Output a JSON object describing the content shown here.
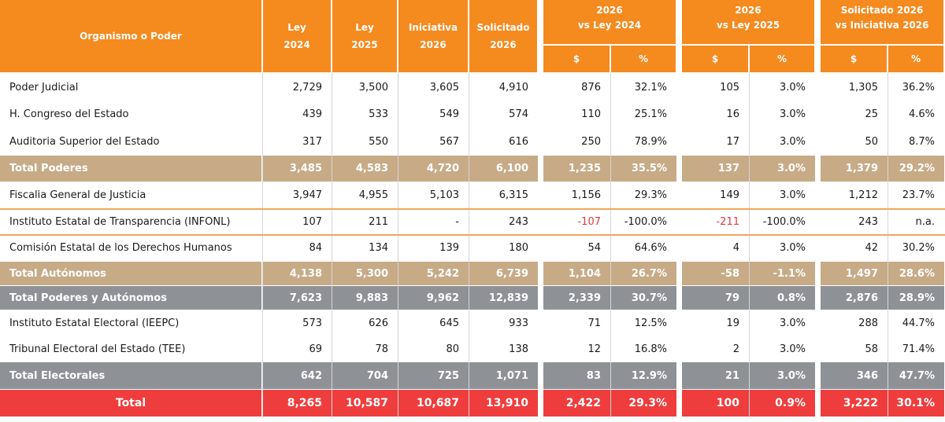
{
  "headers": {
    "organismo": "Organismo o Poder",
    "ley2024": [
      "Ley",
      "2024"
    ],
    "ley2025": [
      "Ley",
      "2025"
    ],
    "iniciativa2026": [
      "Iniciativa",
      "2026"
    ],
    "solicitado2026": [
      "Solicitado",
      "2026"
    ],
    "group1": [
      "2026",
      "vs Ley 2024"
    ],
    "group2": [
      "2026",
      "vs Ley 2025"
    ],
    "group3": [
      "Solicitado 2026",
      "vs Iniciativa 2026"
    ],
    "dollar": "$",
    "percent": "%"
  },
  "rows": [
    {
      "style": "white",
      "name": "Poder Judicial",
      "ley2024": "2,729",
      "ley2025": "3,500",
      "ini2026": "3,605",
      "sol2026": "4,910",
      "g1d": "876",
      "g1p": "32.1%",
      "g2d": "105",
      "g2p": "3.0%",
      "g3d": "1,305",
      "g3p": "36.2%"
    },
    {
      "style": "white",
      "name": "H. Congreso del Estado",
      "ley2024": "439",
      "ley2025": "533",
      "ini2026": "549",
      "sol2026": "574",
      "g1d": "110",
      "g1p": "25.1%",
      "g2d": "16",
      "g2p": "3.0%",
      "g3d": "25",
      "g3p": "4.6%"
    },
    {
      "style": "white",
      "name": "Auditoria Superior del Estado",
      "ley2024": "317",
      "ley2025": "550",
      "ini2026": "567",
      "sol2026": "616",
      "g1d": "250",
      "g1p": "78.9%",
      "g2d": "17",
      "g2p": "3.0%",
      "g3d": "50",
      "g3p": "8.7%"
    },
    {
      "style": "tan",
      "name": "Total Poderes",
      "ley2024": "3,485",
      "ley2025": "4,583",
      "ini2026": "4,720",
      "sol2026": "6,100",
      "g1d": "1,235",
      "g1p": "35.5%",
      "g2d": "137",
      "g2p": "3.0%",
      "g3d": "1,379",
      "g3p": "29.2%"
    },
    {
      "style": "white",
      "name": "Fiscalia General de Justicia",
      "ley2024": "3,947",
      "ley2025": "4,955",
      "ini2026": "5,103",
      "sol2026": "6,315",
      "g1d": "1,156",
      "g1p": "29.3%",
      "g2d": "149",
      "g2p": "3.0%",
      "g3d": "1,212",
      "g3p": "23.7%"
    },
    {
      "style": "white",
      "name": "Instituto Estatal de Transparencia (INFONL)",
      "ley2024": "107",
      "ley2025": "211",
      "ini2026": "-",
      "sol2026": "243",
      "g1d": "-107",
      "g1p": "-100.0%",
      "g2d": "-211",
      "g2p": "-100.0%",
      "g3d": "243",
      "g3p": "n.a."
    },
    {
      "style": "white",
      "name": "Comisión Estatal de los Derechos Humanos",
      "ley2024": "84",
      "ley2025": "134",
      "ini2026": "139",
      "sol2026": "180",
      "g1d": "54",
      "g1p": "64.6%",
      "g2d": "4",
      "g2p": "3.0%",
      "g3d": "42",
      "g3p": "30.2%"
    },
    {
      "style": "tan",
      "name": "Total Autónomos",
      "ley2024": "4,138",
      "ley2025": "5,300",
      "ini2026": "5,242",
      "sol2026": "6,739",
      "g1d": "1,104",
      "g1p": "26.7%",
      "g2d": "-58",
      "g2p": "-1.1%",
      "g3d": "1,497",
      "g3p": "28.6%"
    },
    {
      "style": "gray",
      "name": "Total Poderes y Autónomos",
      "ley2024": "7,623",
      "ley2025": "9,883",
      "ini2026": "9,962",
      "sol2026": "12,839",
      "g1d": "2,339",
      "g1p": "30.7%",
      "g2d": "79",
      "g2p": "0.8%",
      "g3d": "2,876",
      "g3p": "28.9%"
    },
    {
      "style": "white",
      "name": "Instituto Estatal Electoral (IEEPC)",
      "ley2024": "573",
      "ley2025": "626",
      "ini2026": "645",
      "sol2026": "933",
      "g1d": "71",
      "g1p": "12.5%",
      "g2d": "19",
      "g2p": "3.0%",
      "g3d": "288",
      "g3p": "44.7%"
    },
    {
      "style": "white",
      "name": "Tribunal Electoral del Estado (TEE)",
      "ley2024": "69",
      "ley2025": "78",
      "ini2026": "80",
      "sol2026": "138",
      "g1d": "12",
      "g1p": "16.8%",
      "g2d": "2",
      "g2p": "3.0%",
      "g3d": "58",
      "g3p": "71.4%"
    },
    {
      "style": "gray",
      "name": "Total Electorales",
      "ley2024": "642",
      "ley2025": "704",
      "ini2026": "725",
      "sol2026": "1,071",
      "g1d": "83",
      "g1p": "12.9%",
      "g2d": "21",
      "g2p": "3.0%",
      "g3d": "346",
      "g3p": "47.7%"
    },
    {
      "style": "red",
      "name": "Total",
      "ley2024": "8,265",
      "ley2025": "10,587",
      "ini2026": "10,687",
      "sol2026": "13,910",
      "g1d": "2,422",
      "g1p": "29.3%",
      "g2d": "100",
      "g2p": "0.9%",
      "g3d": "3,222",
      "g3p": "30.1%"
    }
  ],
  "colors": {
    "header": "#f58a1f",
    "tan": "#c7ab86",
    "gray": "#8e9296",
    "red": "#ef3d3d",
    "negative": "#e0393e"
  }
}
